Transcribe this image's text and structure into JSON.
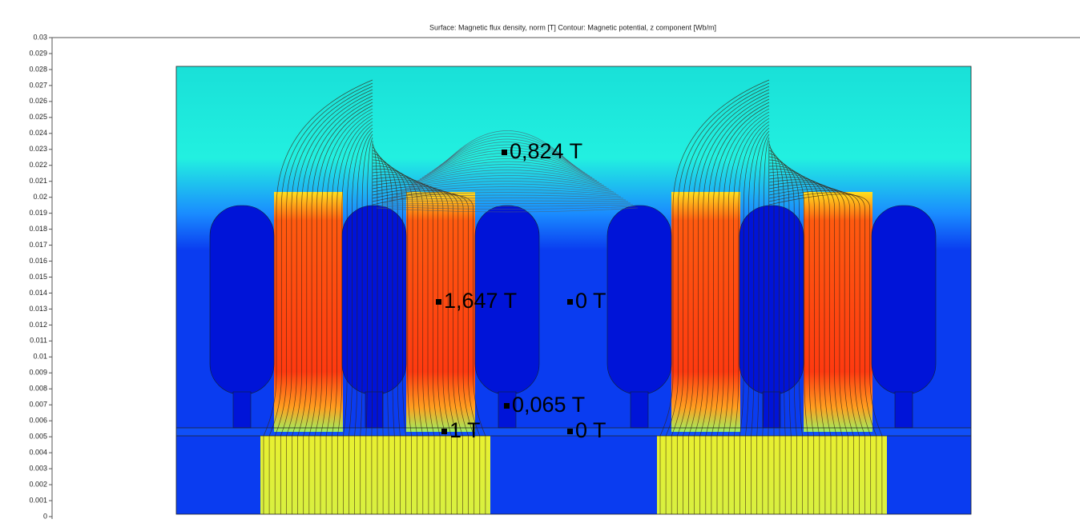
{
  "chart_data": {
    "type": "field",
    "title": "Surface: Magnetic flux density, norm [T]   Contour: Magnetic potential, z component [Wb/m]",
    "ylim": [
      0,
      0.03
    ],
    "yticks": [
      0,
      0.001,
      0.002,
      0.003,
      0.004,
      0.005,
      0.006,
      0.007,
      0.008,
      0.009,
      0.01,
      0.011,
      0.012,
      0.013,
      0.014,
      0.015,
      0.016,
      0.017,
      0.018,
      0.019,
      0.02,
      0.021,
      0.022,
      0.023,
      0.024,
      0.025,
      0.026,
      0.027,
      0.028,
      0.029,
      0.03
    ],
    "annotations": [
      "0,824 T",
      "1,647 T",
      "0 T",
      "0,065 T",
      "1 T",
      "0 T"
    ]
  }
}
